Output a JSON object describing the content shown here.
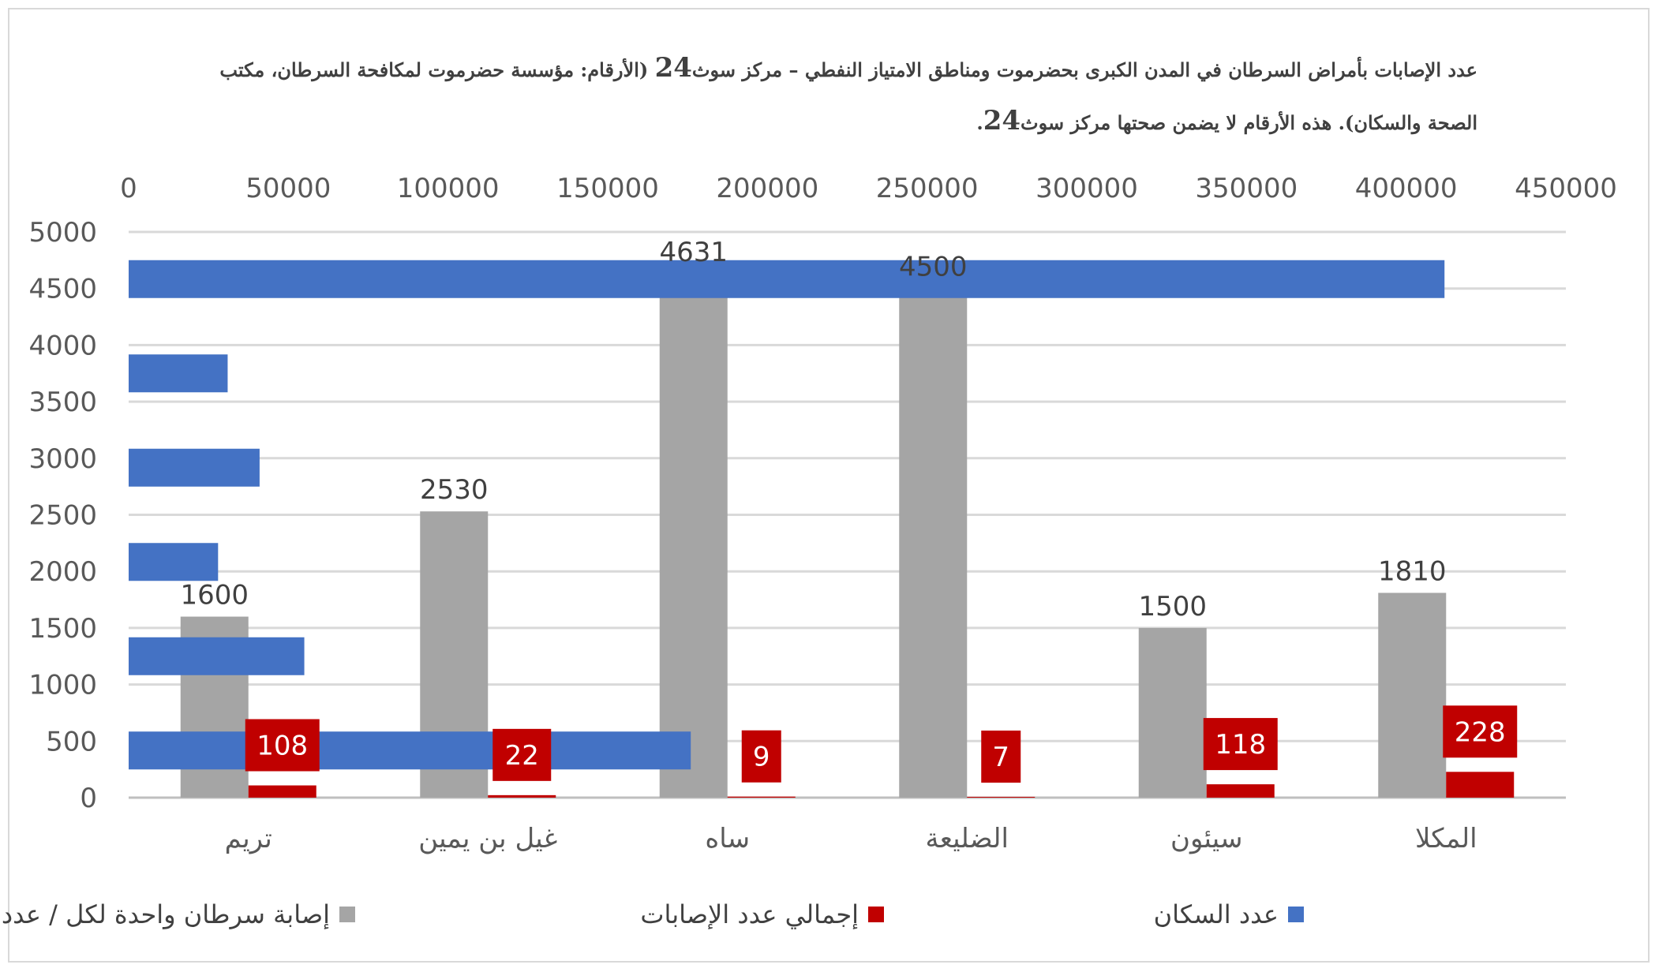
{
  "title": {
    "line1_before": "عدد الإصابات بأمراض السرطان في المدن الكبرى بحضرموت ومناطق الامتياز النفطي – مركز سوث",
    "line1_num": "24",
    "line1_after": " (الأرقام: مؤسسة حضرموت لمكافحة السرطان، مكتب",
    "line2_before": "الصحة والسكان). هذه الأرقام لا يضمن صحتها مركز سوث",
    "line2_num": "24",
    "line2_after": "."
  },
  "chart_data": {
    "type": "bar",
    "categories": [
      "تريم",
      "غيل بن يمين",
      "ساه",
      "الضليعة",
      "سيئون",
      "المكلا"
    ],
    "primary_axis": {
      "ylim": [
        0,
        5000
      ],
      "ticks": [
        0,
        500,
        1000,
        1500,
        2000,
        2500,
        3000,
        3500,
        4000,
        4500,
        5000
      ]
    },
    "secondary_axis": {
      "position": "top",
      "xlim": [
        0,
        450000
      ],
      "ticks": [
        0,
        50000,
        100000,
        150000,
        200000,
        250000,
        300000,
        350000,
        400000,
        450000
      ]
    },
    "series": [
      {
        "name": "إصابة سرطان واحدة لكل / عدد سكان",
        "color": "#a5a5a5",
        "axis": "primary",
        "orientation": "vertical",
        "values": [
          1600,
          2530,
          4631,
          4500,
          1500,
          1810
        ],
        "labels": [
          "1600",
          "2530",
          "4631",
          "4500",
          "1500",
          "1810"
        ]
      },
      {
        "name": "إجمالي عدد الإصابات",
        "color": "#c00000",
        "axis": "primary",
        "orientation": "vertical",
        "values": [
          108,
          22,
          9,
          7,
          118,
          228
        ],
        "labels": [
          "108",
          "22",
          "9",
          "7",
          "118",
          "228"
        ]
      },
      {
        "name": "عدد السكان",
        "color": "#4472c4",
        "axis": "secondary",
        "orientation": "horizontal",
        "values": [
          176000,
          55000,
          28000,
          41000,
          31000,
          412000
        ]
      }
    ],
    "legend": {
      "position": "bottom",
      "order": [
        2,
        1,
        0
      ]
    },
    "grid": true
  }
}
